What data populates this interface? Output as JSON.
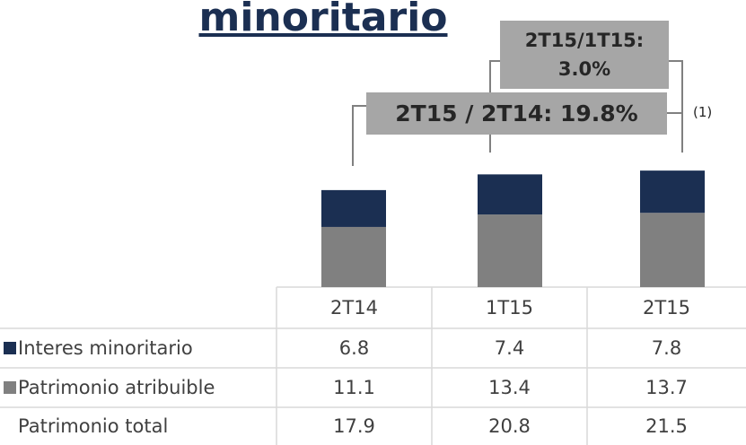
{
  "chart_data": {
    "type": "stacked-bar",
    "title": "minoritario",
    "categories": [
      "2T14",
      "1T15",
      "2T15"
    ],
    "series": [
      {
        "name": "Patrimonio atribuible",
        "color": "#808080",
        "values": [
          11.1,
          13.4,
          13.7
        ]
      },
      {
        "name": "Interes minoritario",
        "color": "#1b2f52",
        "values": [
          6.8,
          7.4,
          7.8
        ]
      }
    ],
    "totals": {
      "name": "Patrimonio total",
      "values": [
        17.9,
        20.8,
        21.5
      ]
    },
    "ylim": [
      0,
      25
    ],
    "annotations": [
      "2T15/1T15: 3.0%",
      "2T15 / 2T14: 19.8%",
      "(1)"
    ]
  }
}
